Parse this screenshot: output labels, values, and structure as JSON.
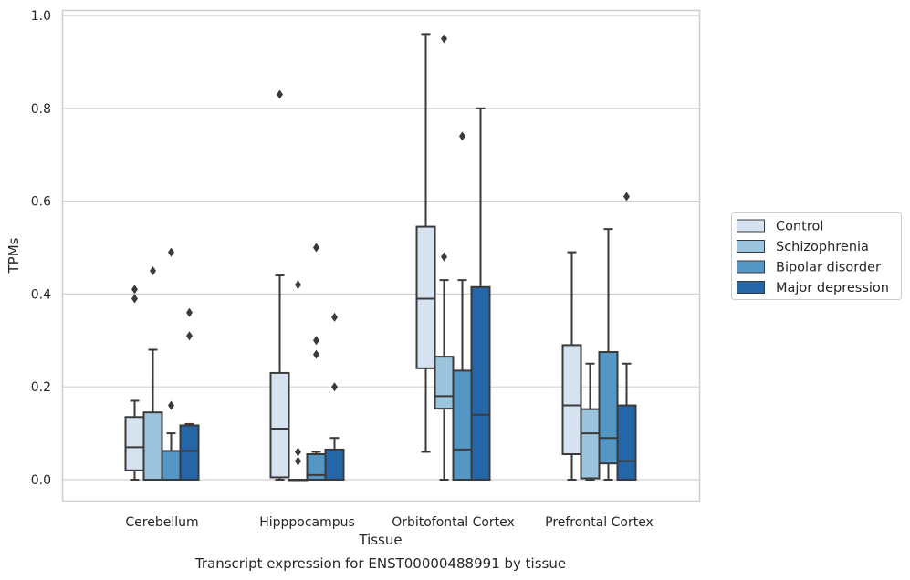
{
  "chart_data": {
    "type": "box",
    "title": "",
    "xlabel": "Tissue",
    "ylabel": "TPMs",
    "caption": "Transcript expression for ENST00000488991 by tissue",
    "ylim": [
      -0.045,
      1.01
    ],
    "yticks": [
      0.0,
      0.2,
      0.4,
      0.6,
      0.8,
      1.0
    ],
    "ytick_labels": [
      "0.0",
      "0.2",
      "0.4",
      "0.6",
      "0.8",
      "1.0"
    ],
    "grid": "horizontal",
    "legend_position": "outside-right",
    "categories": [
      "Cerebellum",
      "Hipppocampus",
      "Orbitofontal Cortex",
      "Prefrontal Cortex"
    ],
    "series": [
      {
        "name": "Control",
        "color": "#d5e3f1",
        "boxes": [
          {
            "whislo": 0.0,
            "q1": 0.02,
            "med": 0.07,
            "q3": 0.135,
            "whishi": 0.17,
            "fliers": [
              0.39,
              0.41
            ]
          },
          {
            "whislo": 0.0,
            "q1": 0.005,
            "med": 0.11,
            "q3": 0.23,
            "whishi": 0.44,
            "fliers": [
              0.83
            ]
          },
          {
            "whislo": 0.06,
            "q1": 0.24,
            "med": 0.39,
            "q3": 0.545,
            "whishi": 0.96,
            "fliers": []
          },
          {
            "whislo": 0.0,
            "q1": 0.055,
            "med": 0.16,
            "q3": 0.29,
            "whishi": 0.49,
            "fliers": []
          }
        ]
      },
      {
        "name": "Schizophrenia",
        "color": "#9dc4dd",
        "boxes": [
          {
            "whislo": 0.0,
            "q1": 0.0,
            "med": 0.0,
            "q3": 0.145,
            "whishi": 0.28,
            "fliers": [
              0.45
            ]
          },
          {
            "whislo": 0.0,
            "q1": 0.0,
            "med": 0.0,
            "q3": 0.0,
            "whishi": 0.0,
            "fliers": [
              0.04,
              0.06,
              0.42
            ]
          },
          {
            "whislo": 0.0,
            "q1": 0.153,
            "med": 0.18,
            "q3": 0.265,
            "whishi": 0.43,
            "fliers": [
              0.48,
              0.95
            ]
          },
          {
            "whislo": 0.0,
            "q1": 0.003,
            "med": 0.1,
            "q3": 0.152,
            "whishi": 0.25,
            "fliers": []
          }
        ]
      },
      {
        "name": "Bipolar disorder",
        "color": "#5497c5",
        "boxes": [
          {
            "whislo": 0.0,
            "q1": 0.0,
            "med": 0.0,
            "q3": 0.062,
            "whishi": 0.1,
            "fliers": [
              0.16,
              0.49
            ]
          },
          {
            "whislo": 0.0,
            "q1": 0.0,
            "med": 0.01,
            "q3": 0.055,
            "whishi": 0.06,
            "fliers": [
              0.27,
              0.3,
              0.5
            ]
          },
          {
            "whislo": 0.0,
            "q1": 0.0,
            "med": 0.065,
            "q3": 0.235,
            "whishi": 0.43,
            "fliers": [
              0.74
            ]
          },
          {
            "whislo": 0.0,
            "q1": 0.035,
            "med": 0.09,
            "q3": 0.275,
            "whishi": 0.54,
            "fliers": []
          }
        ]
      },
      {
        "name": "Major depression",
        "color": "#2466a8",
        "boxes": [
          {
            "whislo": 0.0,
            "q1": 0.0,
            "med": 0.062,
            "q3": 0.117,
            "whishi": 0.12,
            "fliers": [
              0.31,
              0.36
            ]
          },
          {
            "whislo": 0.0,
            "q1": 0.0,
            "med": 0.0,
            "q3": 0.065,
            "whishi": 0.09,
            "fliers": [
              0.2,
              0.35
            ]
          },
          {
            "whislo": 0.0,
            "q1": 0.0,
            "med": 0.14,
            "q3": 0.415,
            "whishi": 0.8,
            "fliers": []
          },
          {
            "whislo": 0.0,
            "q1": 0.0,
            "med": 0.04,
            "q3": 0.16,
            "whishi": 0.25,
            "fliers": [
              0.61
            ]
          }
        ]
      }
    ]
  }
}
